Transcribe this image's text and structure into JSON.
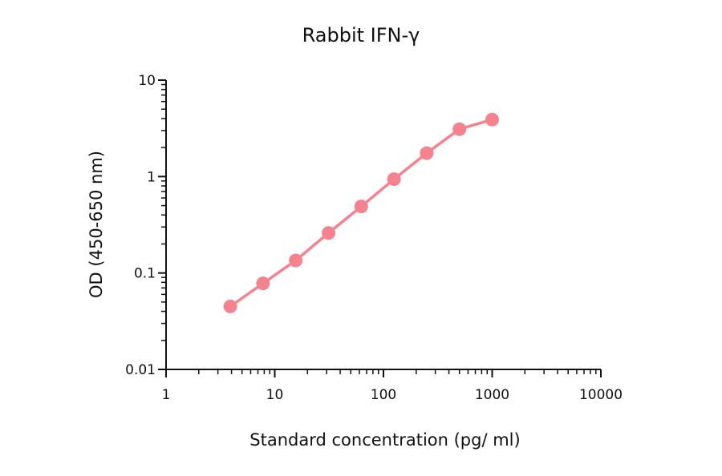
{
  "chart_data": {
    "type": "line",
    "title": "Rabbit IFN-γ",
    "xlabel": "Standard concentration (pg/ ml)",
    "ylabel": "OD (450-650 nm)",
    "xscale": "log",
    "yscale": "log",
    "xlim": [
      1,
      10000
    ],
    "ylim": [
      0.01,
      10
    ],
    "xticks": [
      "1",
      "10",
      "100",
      "1000",
      "10000"
    ],
    "yticks": [
      "0.01",
      "0.1",
      "1",
      "10"
    ],
    "grid": false,
    "legend": null,
    "series": [
      {
        "name": "Rabbit IFN-γ",
        "color": "#F4838F",
        "marker": "circle",
        "x": [
          3.9,
          7.8,
          15.6,
          31.25,
          62.5,
          125,
          250,
          500,
          1000
        ],
        "y": [
          0.045,
          0.078,
          0.135,
          0.26,
          0.49,
          0.94,
          1.75,
          3.1,
          3.9
        ]
      }
    ]
  },
  "labels": {
    "title": "Rabbit IFN-γ",
    "xlabel": "Standard concentration (pg/ ml)",
    "ylabel": "OD (450-650 nm)"
  }
}
